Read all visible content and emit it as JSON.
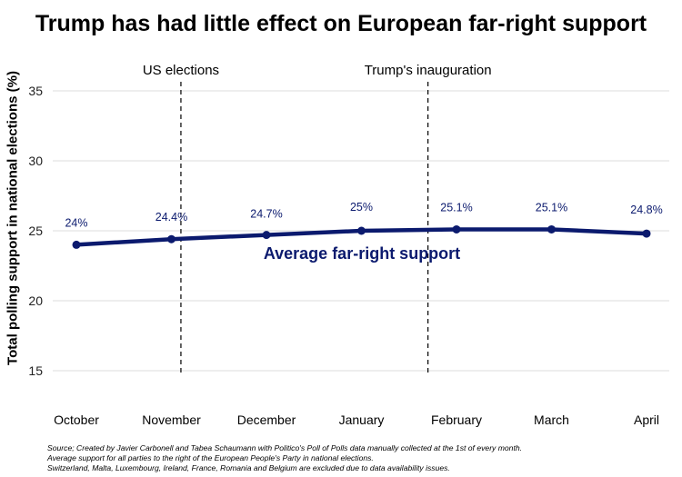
{
  "title": "Trump has had little effect on European far-right support",
  "footnote": {
    "lines": [
      "Source; Created by Javier Carbonell and Tabea Schaumann with Politico's Poll of Polls data manually collected at the 1st of every month.",
      "Average support for all parties to the right of the European People's Party in national elections.",
      "Switzerland, Malta, Luxembourg, Ireland, France, Romania and Belgium are excluded due to data availability issues."
    ]
  },
  "chart_data": {
    "type": "line",
    "title": "Trump has had little effect on European far-right support",
    "xlabel": "",
    "ylabel": "Total polling support in national elections (%)",
    "categories": [
      "October",
      "November",
      "December",
      "January",
      "February",
      "March",
      "April"
    ],
    "series": [
      {
        "name": "Average far-right support",
        "values": [
          24.0,
          24.4,
          24.7,
          25.0,
          25.1,
          25.1,
          24.8
        ],
        "data_labels": [
          "24%",
          "24.4%",
          "24.7%",
          "25%",
          "25.1%",
          "25.1%",
          "24.8%"
        ],
        "color": "#0b1a6e"
      }
    ],
    "ylim": [
      15,
      35
    ],
    "yticks": [
      15,
      20,
      25,
      30,
      35
    ],
    "grid": "horizontal",
    "annotations": [
      {
        "label": "US elections",
        "x": "November",
        "x_offset_months": 0.1,
        "style": "dashed-vertical-line"
      },
      {
        "label": "Trump's inauguration",
        "x": "January",
        "x_offset_months": 0.7,
        "style": "dashed-vertical-line"
      }
    ],
    "series_label_text": "Average far-right support",
    "colors": {
      "line": "#0b1a6e",
      "grid": "#dedede",
      "annotation": "#000000"
    }
  }
}
